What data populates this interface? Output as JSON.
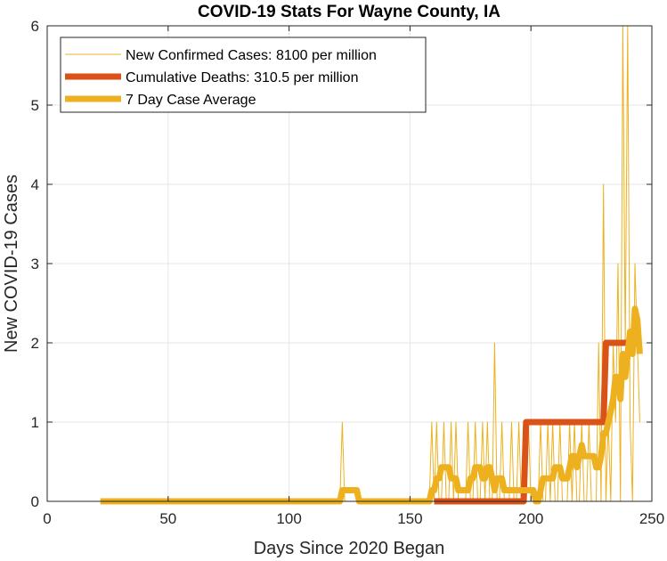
{
  "chart_data": {
    "type": "line",
    "title": "COVID-19 Stats For Wayne County, IA",
    "xlabel": "Days Since 2020 Began",
    "ylabel": "New COVID-19 Cases",
    "xlim": [
      0,
      250
    ],
    "ylim": [
      0,
      6
    ],
    "xticks": [
      0,
      50,
      100,
      150,
      200,
      250
    ],
    "yticks": [
      0,
      1,
      2,
      3,
      4,
      5,
      6
    ],
    "grid": true,
    "legend_position": "top-left",
    "series": [
      {
        "name": "New Confirmed Cases: 8100 per million",
        "color": "#EDB120",
        "style": "thin",
        "x": [
          22,
          120,
          121,
          122,
          123,
          124,
          125,
          126,
          127,
          128,
          129,
          130,
          150,
          156,
          157,
          158,
          159,
          160,
          161,
          162,
          163,
          164,
          165,
          166,
          167,
          168,
          169,
          170,
          171,
          172,
          173,
          174,
          175,
          176,
          177,
          178,
          179,
          180,
          181,
          182,
          183,
          184,
          185,
          186,
          187,
          188,
          189,
          190,
          191,
          192,
          193,
          194,
          195,
          196,
          197,
          198,
          199,
          200,
          201,
          202,
          203,
          204,
          205,
          206,
          207,
          208,
          209,
          210,
          211,
          212,
          213,
          214,
          215,
          216,
          217,
          218,
          219,
          220,
          221,
          222,
          223,
          224,
          225,
          226,
          227,
          228,
          229,
          230,
          231,
          232,
          233,
          234,
          235,
          236,
          237,
          238,
          239,
          240,
          241,
          242,
          243,
          244,
          245
        ],
        "y": [
          0,
          0,
          0,
          1,
          0,
          0,
          0,
          0,
          0,
          0,
          0,
          0,
          0,
          0,
          0,
          0,
          1,
          0,
          1,
          0,
          0,
          1,
          0,
          0,
          1,
          0,
          1,
          0,
          0,
          0,
          0,
          1,
          0,
          0,
          1,
          0,
          0,
          1,
          0,
          1,
          0,
          0,
          2,
          0,
          0,
          1,
          0,
          0,
          0,
          1,
          0,
          0,
          1,
          0,
          0,
          0,
          1,
          0,
          0,
          0,
          0,
          1,
          0,
          0,
          1,
          0,
          1,
          0,
          0,
          1,
          0,
          0,
          0,
          1,
          0,
          1,
          0,
          0,
          1,
          0,
          0,
          1,
          0,
          0,
          0,
          2,
          0,
          4,
          0,
          1,
          0,
          2,
          1,
          3,
          0,
          6,
          2,
          6,
          1,
          0,
          3,
          2,
          1
        ]
      },
      {
        "name": "Cumulative Deaths: 310.5 per million",
        "color": "#D95319",
        "style": "thick",
        "x": [
          160,
          197,
          198,
          230,
          231,
          245
        ],
        "y": [
          0,
          0,
          1,
          1,
          2,
          2
        ]
      },
      {
        "name": "7 Day Case Average",
        "color": "#EDB120",
        "style": "thick",
        "x": [
          22,
          121,
          122,
          128,
          129,
          158,
          159,
          160,
          161,
          162,
          163,
          164,
          165,
          166,
          167,
          168,
          169,
          170,
          171,
          172,
          173,
          174,
          175,
          176,
          177,
          178,
          179,
          180,
          181,
          182,
          183,
          184,
          185,
          186,
          187,
          188,
          189,
          190,
          191,
          192,
          193,
          194,
          195,
          196,
          197,
          198,
          199,
          200,
          201,
          202,
          203,
          204,
          205,
          206,
          207,
          208,
          209,
          210,
          211,
          212,
          213,
          214,
          215,
          216,
          217,
          218,
          219,
          220,
          221,
          222,
          223,
          224,
          225,
          226,
          227,
          228,
          229,
          230,
          231,
          232,
          233,
          234,
          235,
          236,
          237,
          238,
          239,
          240,
          241,
          242,
          243,
          244,
          245
        ],
        "y": [
          0,
          0,
          0.14,
          0.14,
          0,
          0,
          0.14,
          0.14,
          0.29,
          0.29,
          0.43,
          0.43,
          0.43,
          0.43,
          0.29,
          0.29,
          0.29,
          0.14,
          0.14,
          0.14,
          0.14,
          0.14,
          0.29,
          0.29,
          0.43,
          0.43,
          0.43,
          0.29,
          0.29,
          0.43,
          0.43,
          0.29,
          0.14,
          0.29,
          0.29,
          0.29,
          0.14,
          0.14,
          0.14,
          0.14,
          0.14,
          0.14,
          0.14,
          0.14,
          0.14,
          0.14,
          0.14,
          0.14,
          0.14,
          0,
          0,
          0.14,
          0.29,
          0.29,
          0.29,
          0.29,
          0.29,
          0.43,
          0.43,
          0.43,
          0.29,
          0.29,
          0.29,
          0.43,
          0.57,
          0.57,
          0.43,
          0.57,
          0.71,
          0.57,
          0.57,
          0.57,
          0.57,
          0.57,
          0.43,
          0.43,
          0.57,
          0.86,
          0.86,
          1.0,
          1.14,
          1.29,
          1.57,
          1.57,
          1.29,
          1.86,
          1.57,
          1.86,
          2.14,
          1.86,
          2.43,
          2.29,
          1.86
        ]
      }
    ]
  }
}
